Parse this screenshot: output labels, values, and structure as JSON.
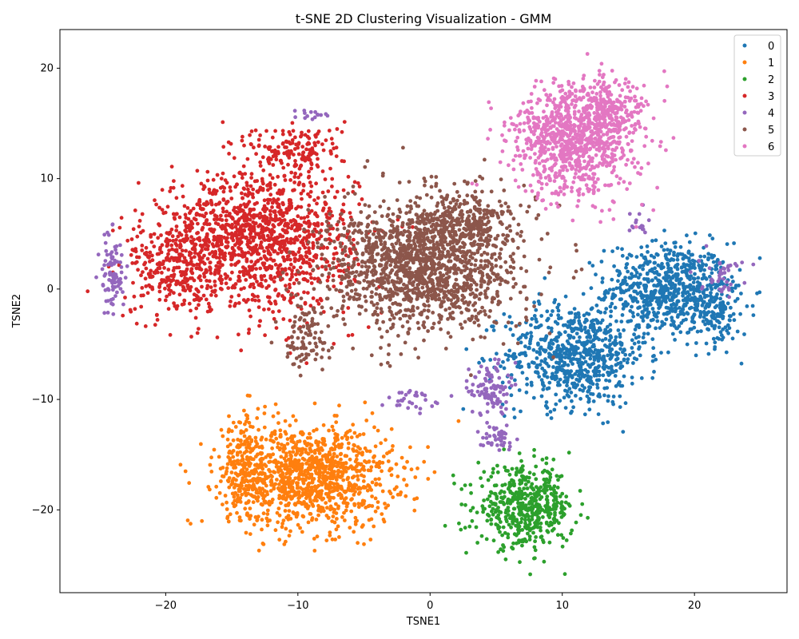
{
  "chart_data": {
    "type": "scatter",
    "title": "t-SNE 2D Clustering Visualization - GMM",
    "xlabel": "TSNE1",
    "ylabel": "TSNE2",
    "xlim": [
      -28,
      27
    ],
    "ylim": [
      -27.5,
      23.5
    ],
    "xticks": [
      -20,
      -10,
      0,
      10,
      20
    ],
    "yticks": [
      -20,
      -10,
      0,
      10,
      20
    ],
    "tick_labels_x": [
      "−20",
      "−10",
      "0",
      "10",
      "20"
    ],
    "tick_labels_y": [
      "−20",
      "−10",
      "0",
      "10",
      "20"
    ],
    "legend_position": "top-right",
    "grid": false,
    "series": [
      {
        "name": "0",
        "color": "#1f77b4"
      },
      {
        "name": "1",
        "color": "#ff7f0e"
      },
      {
        "name": "2",
        "color": "#2ca02c"
      },
      {
        "name": "3",
        "color": "#d62728"
      },
      {
        "name": "4",
        "color": "#9467bd"
      },
      {
        "name": "5",
        "color": "#8c564b"
      },
      {
        "name": "6",
        "color": "#e377c2"
      }
    ]
  }
}
